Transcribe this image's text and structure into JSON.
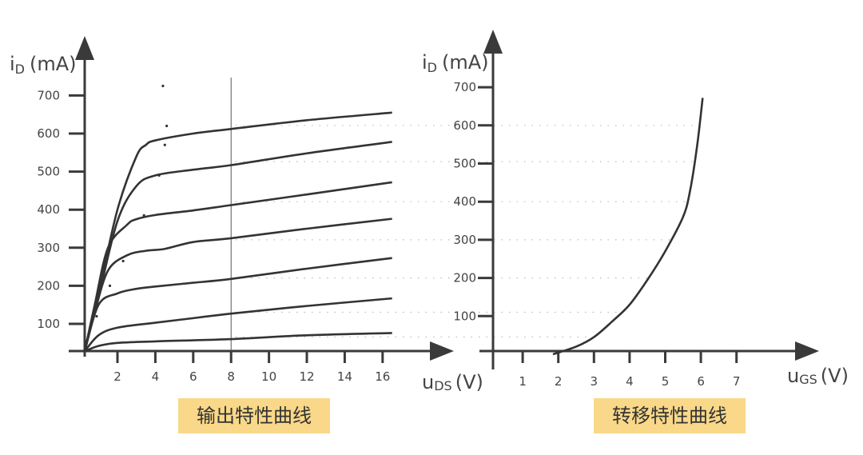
{
  "colors": {
    "line": "#333333",
    "axis": "#3a3a3a",
    "grid": "#bdbdbd",
    "caption_bg": "#fad889"
  },
  "chart_data": [
    {
      "type": "line",
      "title": "输出特性曲线",
      "ylabel": {
        "main": "i",
        "sub": "D",
        "unit": "(mA)"
      },
      "xlabel": {
        "main": "u",
        "sub": "DS",
        "unit": "(V)"
      },
      "xticks": [
        2,
        4,
        6,
        8,
        10,
        12,
        14,
        16
      ],
      "yticks": [
        100,
        200,
        300,
        400,
        500,
        600,
        700
      ],
      "marker_line_x": 8,
      "series": [
        {
          "points": [
            [
              0.27,
              28
            ],
            [
              1,
              180
            ],
            [
              2,
              400
            ],
            [
              3,
              540
            ],
            [
              3.5,
              570
            ],
            [
              4,
              582
            ],
            [
              6,
              600
            ],
            [
              8,
              612
            ],
            [
              12,
              635
            ],
            [
              16.5,
              655
            ]
          ]
        },
        {
          "points": [
            [
              0.27,
              28
            ],
            [
              1,
              170
            ],
            [
              2,
              370
            ],
            [
              3,
              462
            ],
            [
              4,
              490
            ],
            [
              6,
              505
            ],
            [
              8,
              517
            ],
            [
              12,
              548
            ],
            [
              16.5,
              578
            ]
          ]
        },
        {
          "points": [
            [
              0.27,
              28
            ],
            [
              0.8,
              150
            ],
            [
              1.5,
              300
            ],
            [
              2.5,
              360
            ],
            [
              3,
              375
            ],
            [
              4,
              386
            ],
            [
              6,
              398
            ],
            [
              8,
              412
            ],
            [
              12,
              440
            ],
            [
              16.5,
              472
            ]
          ]
        },
        {
          "points": [
            [
              0.27,
              28
            ],
            [
              0.8,
              130
            ],
            [
              1.5,
              240
            ],
            [
              2.5,
              280
            ],
            [
              3.5,
              292
            ],
            [
              4.5,
              297
            ],
            [
              6,
              315
            ],
            [
              8,
              325
            ],
            [
              12,
              350
            ],
            [
              16.5,
              376
            ]
          ]
        },
        {
          "points": [
            [
              0.27,
              28
            ],
            [
              1,
              150
            ],
            [
              2,
              180
            ],
            [
              3,
              192
            ],
            [
              4,
              198
            ],
            [
              6,
              208
            ],
            [
              8,
              218
            ],
            [
              12,
              245
            ],
            [
              16.5,
              273
            ]
          ]
        },
        {
          "points": [
            [
              0.27,
              28
            ],
            [
              1,
              70
            ],
            [
              2,
              90
            ],
            [
              4,
              103
            ],
            [
              6,
              115
            ],
            [
              8,
              127
            ],
            [
              12,
              147
            ],
            [
              16.5,
              167
            ]
          ]
        },
        {
          "points": [
            [
              0.27,
              28
            ],
            [
              1,
              42
            ],
            [
              2,
              50
            ],
            [
              4,
              54
            ],
            [
              8,
              60
            ],
            [
              12,
              70
            ],
            [
              16.5,
              76
            ]
          ]
        }
      ],
      "boundary_dotted": [
        [
          0.9,
          120
        ],
        [
          1.6,
          200
        ],
        [
          2.3,
          265
        ],
        [
          3.4,
          385
        ],
        [
          4.2,
          490
        ],
        [
          4.5,
          570
        ],
        [
          4.6,
          620
        ],
        [
          4.4,
          725
        ]
      ]
    },
    {
      "type": "line",
      "title": "转移特性曲线",
      "ylabel": {
        "main": "i",
        "sub": "D",
        "unit": "(mA)"
      },
      "xlabel": {
        "main": "u",
        "sub": "GS",
        "unit": "(V)"
      },
      "xticks": [
        1,
        2,
        3,
        4,
        5,
        6,
        7
      ],
      "yticks": [
        100,
        200,
        300,
        400,
        500,
        600,
        700
      ],
      "series": [
        {
          "points": [
            [
              1.85,
              0
            ],
            [
              2.5,
              20
            ],
            [
              3,
              45
            ],
            [
              3.5,
              85
            ],
            [
              4,
              130
            ],
            [
              4.5,
              195
            ],
            [
              5,
              270
            ],
            [
              5.5,
              360
            ],
            [
              5.7,
              430
            ],
            [
              5.9,
              550
            ],
            [
              6.05,
              672
            ]
          ]
        }
      ],
      "projection_levels": [
        600,
        505,
        400,
        300,
        200,
        110,
        45
      ]
    }
  ]
}
